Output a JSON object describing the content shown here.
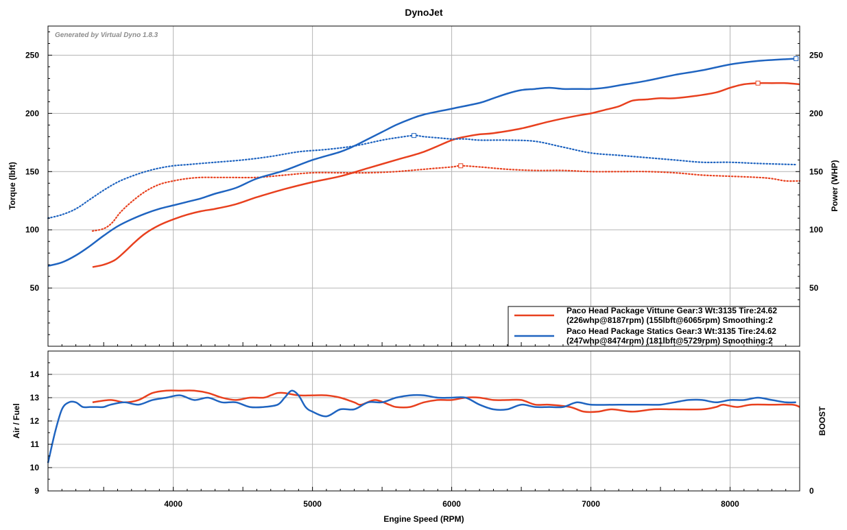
{
  "chart_data": [
    {
      "type": "line",
      "title": "DynoJet",
      "watermark": "Generated by Virtual Dyno 1.8.3",
      "xlabel": "Engine Speed (RPM)",
      "ylabel": "Torque (lbft)",
      "y2label": "Power (WHP)",
      "xlim": [
        3100,
        8500
      ],
      "ylim": [
        0,
        275
      ],
      "y2lim": [
        0,
        275
      ],
      "xticks": [
        "4000",
        "5000",
        "6000",
        "7000",
        "8000"
      ],
      "yticks": [
        "50",
        "100",
        "150",
        "200",
        "250"
      ],
      "y2ticks": [
        "50",
        "100",
        "150",
        "200",
        "250"
      ],
      "grid": true,
      "legend_position": "bottom-right",
      "colors": {
        "vittune": "#e8401e",
        "statics": "#1f64c0"
      },
      "legend": [
        {
          "color": "#e8401e",
          "line1": "Paco Head Package Vittune Gear:3 Wt:3135 Tire:24.62",
          "line2": "(226whp@8187rpm) (155lbft@6065rpm) Smoothing:2"
        },
        {
          "color": "#1f64c0",
          "line1": "Paco Head Package Statics Gear:3 Wt:3135 Tire:24.62",
          "line2": "(247whp@8474rpm) (181lbft@5729rpm) Smoothing:2"
        }
      ],
      "series": [
        {
          "name": "Paco Head Package Vittune Gear:3 Wt:3135 Tire:24.62",
          "measure": "power",
          "color": "#e8401e",
          "style": "solid",
          "x": [
            3420,
            3500,
            3580,
            3650,
            3720,
            3800,
            3900,
            4000,
            4100,
            4200,
            4300,
            4450,
            4600,
            4800,
            5000,
            5200,
            5400,
            5600,
            5800,
            6000,
            6100,
            6200,
            6300,
            6500,
            6700,
            6900,
            7000,
            7100,
            7200,
            7300,
            7400,
            7500,
            7600,
            7750,
            7900,
            8000,
            8100,
            8200,
            8300,
            8400,
            8500
          ],
          "y": [
            68,
            70,
            74,
            81,
            89,
            97,
            104,
            109,
            113,
            116,
            118,
            122,
            128,
            135,
            141,
            146,
            153,
            160,
            167,
            177,
            180,
            182,
            183,
            187,
            193,
            198,
            200,
            203,
            206,
            211,
            212,
            213,
            213,
            215,
            218,
            222,
            225,
            226,
            226,
            226,
            225
          ]
        },
        {
          "name": "Paco Head Package Vittune Gear:3 Wt:3135 Tire:24.62",
          "measure": "torque",
          "color": "#e8401e",
          "style": "dotted",
          "x": [
            3420,
            3500,
            3560,
            3620,
            3700,
            3800,
            3900,
            4000,
            4100,
            4200,
            4300,
            4400,
            4600,
            4800,
            5000,
            5200,
            5400,
            5600,
            5800,
            6000,
            6065,
            6200,
            6400,
            6600,
            6800,
            7000,
            7200,
            7400,
            7600,
            7800,
            8000,
            8200,
            8300,
            8400,
            8500
          ],
          "y": [
            99,
            101,
            106,
            115,
            124,
            133,
            139,
            142,
            144,
            145,
            145,
            145,
            145,
            147,
            149,
            149,
            149,
            150,
            152,
            154,
            155,
            154,
            152,
            151,
            151,
            150,
            150,
            150,
            149,
            147,
            146,
            145,
            144,
            142,
            142
          ],
          "peak_marker_x": 6065
        },
        {
          "name": "Paco Head Package Statics Gear:3 Wt:3135 Tire:24.62",
          "measure": "power",
          "color": "#1f64c0",
          "style": "solid",
          "x": [
            3100,
            3200,
            3300,
            3400,
            3500,
            3600,
            3700,
            3800,
            3900,
            4000,
            4100,
            4200,
            4300,
            4450,
            4600,
            4800,
            5000,
            5200,
            5300,
            5400,
            5500,
            5600,
            5700,
            5800,
            6000,
            6200,
            6300,
            6400,
            6500,
            6600,
            6700,
            6800,
            6900,
            7000,
            7100,
            7200,
            7400,
            7600,
            7800,
            8000,
            8200,
            8474
          ],
          "y": [
            69,
            72,
            78,
            86,
            95,
            103,
            109,
            114,
            118,
            121,
            124,
            127,
            131,
            136,
            144,
            151,
            160,
            167,
            172,
            178,
            184,
            190,
            195,
            199,
            204,
            209,
            213,
            217,
            220,
            221,
            222,
            221,
            221,
            221,
            222,
            224,
            228,
            233,
            237,
            242,
            245,
            247
          ]
        },
        {
          "name": "Paco Head Package Statics Gear:3 Wt:3135 Tire:24.62",
          "measure": "torque",
          "color": "#1f64c0",
          "style": "dotted",
          "x": [
            3100,
            3200,
            3300,
            3400,
            3500,
            3600,
            3700,
            3800,
            3900,
            4000,
            4100,
            4300,
            4500,
            4700,
            4900,
            5100,
            5300,
            5500,
            5600,
            5729,
            5800,
            5900,
            6000,
            6100,
            6200,
            6400,
            6600,
            6800,
            7000,
            7200,
            7400,
            7600,
            7800,
            8000,
            8200,
            8474
          ],
          "y": [
            110,
            113,
            118,
            126,
            134,
            141,
            146,
            150,
            153,
            155,
            156,
            158,
            160,
            163,
            167,
            169,
            172,
            177,
            179,
            181,
            180,
            179,
            178,
            178,
            177,
            177,
            176,
            171,
            166,
            164,
            162,
            160,
            158,
            158,
            157,
            156
          ],
          "peak_marker_x": 5729
        }
      ]
    },
    {
      "type": "line",
      "xlabel": "Engine Speed (RPM)",
      "ylabel": "Air / Fuel",
      "y2label": "BOOST",
      "xlim": [
        3100,
        8500
      ],
      "ylim": [
        9,
        15
      ],
      "yticks": [
        "9",
        "10",
        "11",
        "12",
        "13",
        "14"
      ],
      "y2ticks": [
        "0"
      ],
      "grid": true,
      "series": [
        {
          "name": "Paco Head Package Vittune Gear:3 Wt:3135 Tire:24.62",
          "color": "#e8401e",
          "style": "solid",
          "x": [
            3420,
            3550,
            3650,
            3750,
            3850,
            3950,
            4050,
            4150,
            4250,
            4350,
            4450,
            4550,
            4650,
            4700,
            4750,
            4800,
            4900,
            5000,
            5100,
            5200,
            5300,
            5350,
            5450,
            5550,
            5600,
            5700,
            5800,
            5900,
            6000,
            6100,
            6200,
            6300,
            6400,
            6500,
            6600,
            6700,
            6850,
            6950,
            7050,
            7150,
            7300,
            7450,
            7600,
            7800,
            7900,
            7950,
            8050,
            8150,
            8300,
            8450,
            8500
          ],
          "y": [
            12.8,
            12.9,
            12.8,
            12.9,
            13.2,
            13.3,
            13.3,
            13.3,
            13.2,
            13.0,
            12.9,
            13.0,
            13.0,
            13.1,
            13.2,
            13.2,
            13.1,
            13.1,
            13.1,
            13.0,
            12.8,
            12.7,
            12.9,
            12.7,
            12.6,
            12.6,
            12.8,
            12.9,
            12.9,
            13.0,
            13.0,
            12.9,
            12.9,
            12.9,
            12.7,
            12.7,
            12.6,
            12.4,
            12.4,
            12.5,
            12.4,
            12.5,
            12.5,
            12.5,
            12.6,
            12.7,
            12.6,
            12.7,
            12.7,
            12.7,
            12.6
          ]
        },
        {
          "name": "Paco Head Package Statics Gear:3 Wt:3135 Tire:24.62",
          "color": "#1f64c0",
          "style": "solid",
          "x": [
            3100,
            3150,
            3200,
            3250,
            3300,
            3350,
            3400,
            3450,
            3500,
            3550,
            3650,
            3750,
            3850,
            3950,
            4050,
            4150,
            4250,
            4350,
            4450,
            4550,
            4650,
            4750,
            4800,
            4850,
            4900,
            4950,
            5000,
            5100,
            5200,
            5300,
            5400,
            5500,
            5600,
            5700,
            5800,
            5900,
            6000,
            6100,
            6200,
            6300,
            6400,
            6500,
            6600,
            6700,
            6800,
            6900,
            7000,
            7200,
            7400,
            7500,
            7600,
            7700,
            7800,
            7900,
            8000,
            8100,
            8200,
            8300,
            8400,
            8474
          ],
          "y": [
            10.2,
            11.5,
            12.5,
            12.8,
            12.8,
            12.6,
            12.6,
            12.6,
            12.6,
            12.7,
            12.8,
            12.7,
            12.9,
            13.0,
            13.1,
            12.9,
            13.0,
            12.8,
            12.8,
            12.6,
            12.6,
            12.7,
            13.0,
            13.3,
            13.1,
            12.6,
            12.4,
            12.2,
            12.5,
            12.5,
            12.8,
            12.8,
            13.0,
            13.1,
            13.1,
            13.0,
            13.0,
            13.0,
            12.7,
            12.5,
            12.5,
            12.7,
            12.6,
            12.6,
            12.6,
            12.8,
            12.7,
            12.7,
            12.7,
            12.7,
            12.8,
            12.9,
            12.9,
            12.8,
            12.9,
            12.9,
            13.0,
            12.9,
            12.8,
            12.8
          ]
        }
      ]
    }
  ]
}
